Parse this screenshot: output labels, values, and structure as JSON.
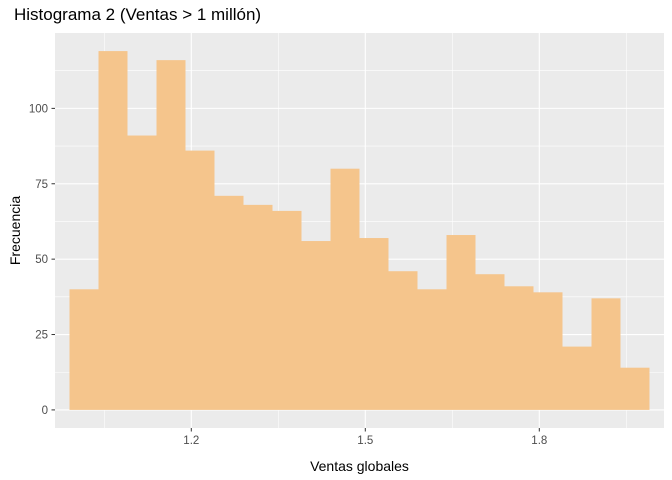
{
  "chart_data": {
    "type": "bar",
    "title": "Histograma 2 (Ventas > 1 millón)",
    "xlabel": "Ventas globales",
    "ylabel": "Frecuencia",
    "bin_width": 0.05,
    "bins": [
      {
        "start": 0.99,
        "end": 1.04,
        "count": 40
      },
      {
        "start": 1.04,
        "end": 1.09,
        "count": 119
      },
      {
        "start": 1.09,
        "end": 1.14,
        "count": 91
      },
      {
        "start": 1.14,
        "end": 1.19,
        "count": 116
      },
      {
        "start": 1.19,
        "end": 1.24,
        "count": 86
      },
      {
        "start": 1.24,
        "end": 1.29,
        "count": 71
      },
      {
        "start": 1.29,
        "end": 1.34,
        "count": 68
      },
      {
        "start": 1.34,
        "end": 1.39,
        "count": 66
      },
      {
        "start": 1.39,
        "end": 1.44,
        "count": 56
      },
      {
        "start": 1.44,
        "end": 1.49,
        "count": 80
      },
      {
        "start": 1.49,
        "end": 1.54,
        "count": 57
      },
      {
        "start": 1.54,
        "end": 1.59,
        "count": 46
      },
      {
        "start": 1.59,
        "end": 1.64,
        "count": 40
      },
      {
        "start": 1.64,
        "end": 1.69,
        "count": 58
      },
      {
        "start": 1.69,
        "end": 1.74,
        "count": 45
      },
      {
        "start": 1.74,
        "end": 1.79,
        "count": 41
      },
      {
        "start": 1.79,
        "end": 1.84,
        "count": 39
      },
      {
        "start": 1.84,
        "end": 1.89,
        "count": 21
      },
      {
        "start": 1.89,
        "end": 1.94,
        "count": 37
      },
      {
        "start": 1.94,
        "end": 1.99,
        "count": 14
      }
    ],
    "xlim": [
      0.965,
      2.015
    ],
    "ylim": [
      -6,
      125
    ],
    "x_ticks": [
      1.2,
      1.5,
      1.8
    ],
    "x_tick_labels": [
      "1.2",
      "1.5",
      "1.8"
    ],
    "x_minor_ticks": [
      1.05,
      1.35,
      1.65,
      1.95
    ],
    "y_ticks": [
      0,
      25,
      50,
      75,
      100
    ],
    "y_tick_labels": [
      "0",
      "25",
      "50",
      "75",
      "100"
    ],
    "grid": true,
    "legend": "none",
    "colors": {
      "bar_fill": "#f5c58c",
      "panel_background": "#ebebeb",
      "grid": "#ffffff"
    }
  }
}
